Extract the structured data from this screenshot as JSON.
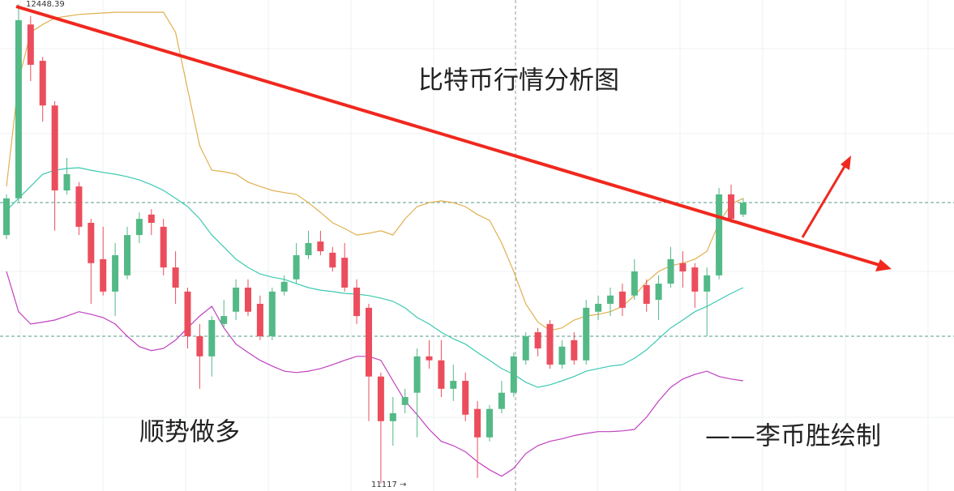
{
  "chart_data": {
    "type": "candlestick",
    "title": "比特币行情分析图",
    "annotations": [
      "顺势做多",
      "——李币胜绘制"
    ],
    "up_color": "#53b987",
    "down_color": "#eb4d5c",
    "ylim": [
      11096,
      12460
    ],
    "open": [
      11807,
      11909,
      12392,
      12291,
      12167,
      11931,
      11942,
      11841,
      11740,
      11650,
      11695,
      11807,
      11864,
      11830,
      11717,
      11650,
      11526,
      11470,
      11560,
      11594,
      11661,
      11616,
      11526,
      11650,
      11684,
      11751,
      11789,
      11758,
      11744,
      11661,
      11605,
      11414,
      11290,
      11335,
      11369,
      11470,
      11459,
      11380,
      11402,
      11324,
      11245,
      11324,
      11369,
      11459,
      11537,
      11560,
      11447,
      11515,
      11459,
      11594,
      11616,
      11650,
      11639,
      11668,
      11627,
      11672,
      11729,
      11717,
      11650,
      11695,
      11920,
      11864
    ],
    "high": [
      11920,
      12448.39,
      12415,
      12302,
      12179,
      12021,
      11954,
      11852,
      11830,
      11785,
      11830,
      11870,
      11879,
      11852,
      11762,
      11661,
      11560,
      11582,
      11627,
      11684,
      11684,
      11639,
      11661,
      11695,
      11785,
      11819,
      11819,
      11774,
      11785,
      11684,
      11616,
      11425,
      11357,
      11380,
      11492,
      11515,
      11515,
      11447,
      11425,
      11346,
      11335,
      11402,
      11481,
      11537,
      11549,
      11571,
      11515,
      11537,
      11627,
      11639,
      11661,
      11672,
      11740,
      11684,
      11695,
      11774,
      11762,
      11729,
      11717,
      11938,
      11947,
      11909
    ],
    "low": [
      11796,
      11897,
      12235,
      12122,
      11819,
      11920,
      11807,
      11616,
      11639,
      11582,
      11684,
      11785,
      11807,
      11695,
      11616,
      11492,
      11380,
      11414,
      11549,
      11571,
      11582,
      11515,
      11515,
      11639,
      11672,
      11740,
      11751,
      11706,
      11650,
      11560,
      11290,
      11117,
      11222,
      11312,
      11245,
      11436,
      11357,
      11346,
      11290,
      11132,
      11234,
      11312,
      11357,
      11447,
      11470,
      11436,
      11436,
      11447,
      11447,
      11571,
      11582,
      11582,
      11627,
      11594,
      11571,
      11661,
      11661,
      11605,
      11526,
      11684,
      11841,
      11857
    ],
    "close": [
      11909,
      12404,
      12280,
      12167,
      11931,
      11976,
      11830,
      11729,
      11650,
      11751,
      11807,
      11852,
      11841,
      11717,
      11661,
      11526,
      11470,
      11571,
      11582,
      11661,
      11594,
      11526,
      11650,
      11677,
      11751,
      11785,
      11762,
      11717,
      11661,
      11582,
      11414,
      11290,
      11312,
      11357,
      11470,
      11459,
      11380,
      11402,
      11308,
      11245,
      11324,
      11369,
      11470,
      11526,
      11492,
      11447,
      11497,
      11459,
      11605,
      11616,
      11639,
      11605,
      11706,
      11616,
      11672,
      11740,
      11706,
      11650,
      11695,
      11920,
      11852,
      11897
    ],
    "series": [
      {
        "color": "#e0b050",
        "values": [
          11942,
          12235,
          12370,
          12392,
          12410,
          12415,
          12420,
          12422,
          12424,
          12426,
          12426,
          12426,
          12426,
          12426,
          12370,
          12212,
          12055,
          11987,
          11983,
          11976,
          11954,
          11942,
          11931,
          11925,
          11920,
          11897,
          11870,
          11841,
          11825,
          11807,
          11812,
          11819,
          11807,
          11852,
          11886,
          11897,
          11902,
          11897,
          11886,
          11864,
          11848,
          11785,
          11706,
          11616,
          11565,
          11542,
          11549,
          11571,
          11582,
          11587,
          11594,
          11609,
          11639,
          11677,
          11706,
          11722,
          11729,
          11740,
          11762,
          11841,
          11893,
          11909
        ]
      },
      {
        "color": "#3cc9b0",
        "values": [
          11875,
          11909,
          11942,
          11976,
          11987,
          11992,
          11994,
          11987,
          11981,
          11976,
          11969,
          11960,
          11947,
          11931,
          11909,
          11886,
          11852,
          11807,
          11774,
          11740,
          11717,
          11699,
          11690,
          11684,
          11672,
          11661,
          11654,
          11650,
          11645,
          11643,
          11639,
          11632,
          11623,
          11605,
          11578,
          11560,
          11537,
          11519,
          11504,
          11481,
          11459,
          11436,
          11420,
          11398,
          11384,
          11391,
          11402,
          11414,
          11429,
          11436,
          11443,
          11447,
          11465,
          11488,
          11519,
          11549,
          11571,
          11594,
          11609,
          11627,
          11645,
          11661
        ]
      },
      {
        "color": "#c040c0",
        "values": [
          11706,
          11594,
          11560,
          11565,
          11571,
          11582,
          11594,
          11587,
          11578,
          11560,
          11526,
          11497,
          11486,
          11492,
          11515,
          11549,
          11582,
          11609,
          11549,
          11504,
          11481,
          11459,
          11443,
          11429,
          11425,
          11429,
          11436,
          11447,
          11459,
          11470,
          11470,
          11459,
          11402,
          11346,
          11308,
          11267,
          11234,
          11222,
          11205,
          11177,
          11155,
          11137,
          11159,
          11200,
          11222,
          11234,
          11241,
          11250,
          11256,
          11261,
          11261,
          11263,
          11267,
          11301,
          11346,
          11384,
          11407,
          11420,
          11429,
          11414,
          11407,
          11402
        ]
      }
    ]
  }
}
